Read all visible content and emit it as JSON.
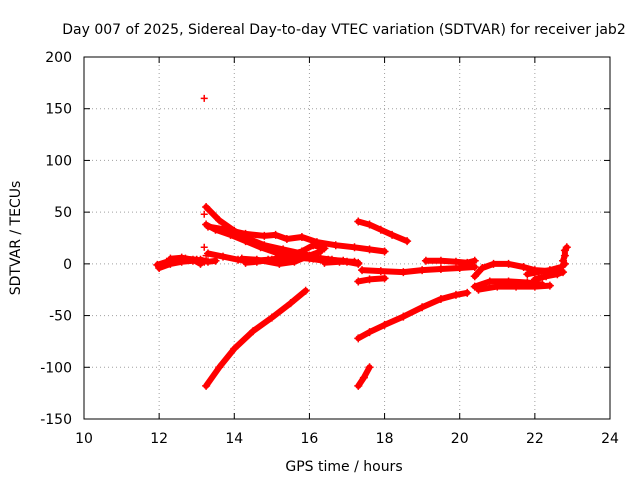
{
  "chart_data": {
    "type": "scatter",
    "title": "Day 007 of 2025, Sidereal Day-to-day VTEC variation (SDTVAR) for receiver jab2",
    "xlabel": "GPS time / hours",
    "ylabel": "SDTVAR / TECUs",
    "xlim": [
      10,
      24
    ],
    "ylim": [
      -150,
      200
    ],
    "xticks": [
      10,
      12,
      14,
      16,
      18,
      20,
      22,
      24
    ],
    "yticks": [
      -150,
      -100,
      -50,
      0,
      50,
      100,
      150,
      200
    ],
    "grid": true,
    "marker": "+",
    "series_color": "#ff0000",
    "tracks": [
      {
        "name": "t1",
        "points": [
          [
            11.95,
            -1
          ],
          [
            12.2,
            2
          ],
          [
            12.4,
            4
          ],
          [
            12.7,
            5
          ],
          [
            13.0,
            4
          ],
          [
            13.2,
            2
          ]
        ]
      },
      {
        "name": "t2",
        "points": [
          [
            12.0,
            -4
          ],
          [
            12.3,
            0
          ],
          [
            12.6,
            2
          ],
          [
            12.9,
            3
          ]
        ]
      },
      {
        "name": "t3",
        "points": [
          [
            12.3,
            5
          ],
          [
            12.6,
            6
          ],
          [
            12.9,
            4
          ],
          [
            13.1,
            0
          ]
        ]
      },
      {
        "name": "t4",
        "points": [
          [
            13.25,
            55
          ],
          [
            13.6,
            42
          ],
          [
            14.0,
            32
          ],
          [
            14.4,
            24
          ],
          [
            14.8,
            18
          ],
          [
            15.3,
            14
          ],
          [
            15.8,
            10
          ],
          [
            16.2,
            6
          ],
          [
            16.6,
            4
          ],
          [
            17.0,
            2
          ],
          [
            17.3,
            0
          ]
        ]
      },
      {
        "name": "t5",
        "points": [
          [
            13.25,
            38
          ],
          [
            13.5,
            33
          ],
          [
            13.9,
            28
          ],
          [
            14.3,
            22
          ],
          [
            14.7,
            16
          ],
          [
            15.1,
            11
          ],
          [
            15.5,
            7
          ],
          [
            16.0,
            5
          ],
          [
            16.4,
            3
          ]
        ]
      },
      {
        "name": "t6",
        "points": [
          [
            13.3,
            36
          ],
          [
            13.8,
            33
          ],
          [
            14.3,
            29
          ],
          [
            14.8,
            27
          ],
          [
            15.1,
            28
          ],
          [
            15.4,
            24
          ],
          [
            15.8,
            26
          ],
          [
            16.2,
            21
          ],
          [
            16.7,
            18
          ],
          [
            17.2,
            16
          ],
          [
            17.6,
            14
          ],
          [
            18.0,
            12
          ]
        ]
      },
      {
        "name": "t7",
        "points": [
          [
            13.3,
            10
          ],
          [
            13.7,
            7
          ],
          [
            14.1,
            4
          ],
          [
            14.5,
            3
          ],
          [
            14.9,
            4
          ],
          [
            15.3,
            5
          ],
          [
            15.7,
            6
          ],
          [
            16.1,
            5
          ],
          [
            16.5,
            4
          ],
          [
            16.9,
            3
          ],
          [
            17.3,
            1
          ]
        ]
      },
      {
        "name": "t8",
        "points": [
          [
            14.3,
            1
          ],
          [
            14.6,
            2
          ],
          [
            15.0,
            4
          ],
          [
            15.4,
            8
          ],
          [
            15.8,
            12
          ],
          [
            16.1,
            18
          ],
          [
            16.4,
            15
          ]
        ]
      },
      {
        "name": "t9",
        "points": [
          [
            14.2,
            5
          ],
          [
            14.6,
            4
          ],
          [
            15.2,
            0
          ],
          [
            15.6,
            2
          ],
          [
            16.0,
            8
          ],
          [
            16.3,
            12
          ]
        ]
      },
      {
        "name": "t10",
        "points": [
          [
            13.25,
            -118
          ],
          [
            13.6,
            -100
          ],
          [
            14.0,
            -82
          ],
          [
            14.5,
            -65
          ],
          [
            15.0,
            -52
          ],
          [
            15.5,
            -38
          ],
          [
            15.9,
            -26
          ]
        ]
      },
      {
        "name": "t11",
        "points": [
          [
            17.3,
            41
          ],
          [
            17.6,
            38
          ],
          [
            17.9,
            33
          ],
          [
            18.2,
            28
          ],
          [
            18.6,
            22
          ]
        ]
      },
      {
        "name": "t12",
        "points": [
          [
            17.3,
            -17
          ],
          [
            17.6,
            -15
          ],
          [
            18.0,
            -14
          ]
        ]
      },
      {
        "name": "t13",
        "points": [
          [
            17.4,
            -6
          ],
          [
            17.9,
            -7
          ],
          [
            18.5,
            -8
          ],
          [
            19.0,
            -6
          ],
          [
            19.5,
            -5
          ],
          [
            20.0,
            -4
          ],
          [
            20.4,
            -3
          ]
        ]
      },
      {
        "name": "t14",
        "points": [
          [
            17.3,
            -72
          ],
          [
            17.6,
            -66
          ],
          [
            18.0,
            -59
          ],
          [
            18.5,
            -51
          ],
          [
            19.0,
            -42
          ],
          [
            19.5,
            -34
          ],
          [
            19.9,
            -30
          ],
          [
            20.2,
            -28
          ]
        ]
      },
      {
        "name": "t15",
        "points": [
          [
            17.3,
            -118
          ],
          [
            17.45,
            -110
          ],
          [
            17.6,
            -100
          ]
        ]
      },
      {
        "name": "t16",
        "points": [
          [
            19.1,
            3
          ],
          [
            19.5,
            3
          ],
          [
            19.9,
            2
          ],
          [
            20.2,
            1
          ],
          [
            20.4,
            3
          ]
        ]
      },
      {
        "name": "t17",
        "points": [
          [
            20.4,
            -12
          ],
          [
            20.6,
            -4
          ],
          [
            20.9,
            0
          ],
          [
            21.3,
            0
          ],
          [
            21.7,
            -3
          ],
          [
            22.0,
            -6
          ],
          [
            22.4,
            -7
          ],
          [
            22.7,
            -6
          ]
        ]
      },
      {
        "name": "t18",
        "points": [
          [
            20.4,
            -22
          ],
          [
            20.8,
            -17
          ],
          [
            21.3,
            -17
          ],
          [
            21.8,
            -18
          ],
          [
            22.2,
            -20
          ]
        ]
      },
      {
        "name": "t19",
        "points": [
          [
            20.5,
            -25
          ],
          [
            21.0,
            -22
          ],
          [
            21.5,
            -22
          ],
          [
            22.0,
            -22
          ],
          [
            22.4,
            -21
          ]
        ]
      },
      {
        "name": "t20",
        "points": [
          [
            21.8,
            -10
          ],
          [
            22.1,
            -8
          ],
          [
            22.4,
            -6
          ],
          [
            22.7,
            -3
          ],
          [
            22.8,
            0
          ]
        ]
      },
      {
        "name": "t21",
        "points": [
          [
            22.0,
            -15
          ],
          [
            22.3,
            -12
          ],
          [
            22.6,
            -10
          ],
          [
            22.75,
            -8
          ]
        ]
      },
      {
        "name": "t22",
        "points": [
          [
            22.75,
            3
          ],
          [
            22.8,
            8
          ],
          [
            22.8,
            13
          ],
          [
            22.85,
            16
          ]
        ]
      },
      {
        "name": "t23",
        "points": [
          [
            13.1,
            4
          ],
          [
            13.3,
            2
          ],
          [
            13.5,
            3
          ]
        ]
      },
      {
        "name": "t24",
        "points": [
          [
            16.4,
            1
          ],
          [
            16.8,
            2
          ],
          [
            17.2,
            2
          ]
        ]
      }
    ],
    "outliers": [
      [
        13.2,
        160
      ],
      [
        13.2,
        48
      ],
      [
        13.2,
        16
      ],
      [
        13.25,
        8
      ]
    ]
  }
}
